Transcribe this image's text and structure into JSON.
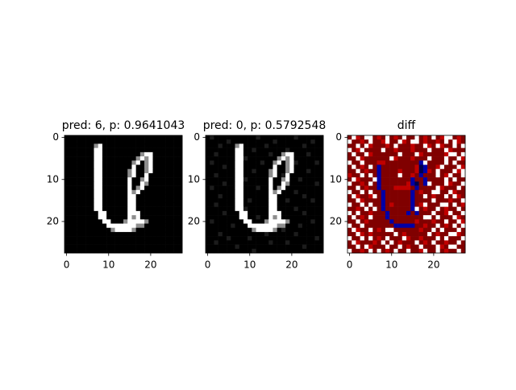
{
  "chart_data": [
    {
      "type": "image",
      "title": "pred: 6, p: 0.9641043",
      "cmap": "gray",
      "clim": [
        0,
        9
      ],
      "xlim": [
        -0.5,
        27.5
      ],
      "ylim": [
        27.5,
        -0.5
      ],
      "xticks": [
        0,
        10,
        20
      ],
      "yticks": [
        0,
        10,
        20
      ],
      "pixels": [
        "0000000000000000000000000000",
        "0000000000000000000000000000",
        "0000000590000000000000000000",
        "0000000990000000000000000000",
        "0000000990000000005990000000",
        "0000000990000000059590000000",
        "0000000990000000590590000000",
        "0000000990000000900590000000",
        "0000000990000005900590000000",
        "0000000990000005900900000000",
        "0000000990000009005900000000",
        "0000000990000009009500000000",
        "0000000990000009059000000000",
        "0000000990000009590000000000",
        "0000000990000009900000000000",
        "0000000990000009900000000000",
        "0000000990000009900000000000",
        "0000000990000009900000000000",
        "0000000099000009990000000000",
        "0000000099000009590000000000",
        "0000000009900059999500000000",
        "0000000000999999955000000000",
        "0000000000059999500000000000",
        "0000000000000000000000000000",
        "0000000000000000000000000000",
        "0000000000000000000000000000",
        "0000000000000000000000000000",
        "0000000000000000000000000000"
      ]
    },
    {
      "type": "image",
      "title": "pred: 0, p: 0.5792548",
      "cmap": "gray",
      "clim": [
        0,
        9
      ],
      "xlim": [
        -0.5,
        27.5
      ],
      "ylim": [
        27.5,
        -0.5
      ],
      "xticks": [
        0,
        10,
        20
      ],
      "yticks": [
        0,
        10,
        20
      ],
      "pixels": [
        "0100000000001000000001000000",
        "0000010000000000100000000100",
        "0001000590000010000000010000",
        "0000000990010000000100000000",
        "0010000990000001005990001000",
        "0000000991000000059590000000",
        "0100000990000100590591000010",
        "0000100990000000900590000000",
        "0000000990010005900590001000",
        "0010000990000005901900000000",
        "0000000991000009005900100000",
        "0000100990000009009500000010",
        "0100000990001009059000000000",
        "0000000990000009590001000000",
        "0001000990000009900000010000",
        "0000000990100009900100000100",
        "0010000990000009900000000000",
        "0000000991000009900001000000",
        "0000100099000009990000010000",
        "0000000099001009590000000000",
        "0100000009900059999500000100",
        "0000001000999999955000100000",
        "0000000000059999501000000000",
        "0001000000000010000001000000",
        "0000010000100000000000000010",
        "0010000000000001000100000000",
        "0000000100000000000000010000",
        "0000000000010000000000000000"
      ]
    },
    {
      "type": "image",
      "title": "diff",
      "cmap": "seismic",
      "clim": [
        0,
        8
      ],
      "xlim": [
        -0.5,
        27.5
      ],
      "ylim": [
        27.5,
        -0.5
      ],
      "xticks": [
        0,
        10,
        20
      ],
      "yticks": [
        0,
        10,
        20
      ],
      "pixels": [
        "8478448784878488487848744878",
        "4887848874884784487887848478",
        "8848478887848887884784788484",
        "4874888848878887888488847888",
        "8488478888884888478888874484",
        "8847888888478887888488848847",
        "4884888778888888814888848488",
        "8487848188888888701887488847",
        "8848788188887888701784888474",
        "7884848188884887818884874884",
        "8478884188888881881888848488",
        "4887848188888871081488847884",
        "8848788188877778188884788848",
        "4884848818888881878844884788",
        "8478874818888881884878848478",
        "8847888818888881888848887884",
        "4884848818788881874888448487",
        "8878484818888881487884878848",
        "4848878881888818188848874884",
        "8487848881888888884484888478",
        "8848788888188888788878848847",
        "4884888888811111887884878484",
        "8478848784488888878848488848",
        "8847878888848788888487884478",
        "4884848784888478878884848884",
        "8478887848487888487848878848",
        "8848478884884878848884784488",
        "4887848487848848874884878848"
      ]
    }
  ]
}
